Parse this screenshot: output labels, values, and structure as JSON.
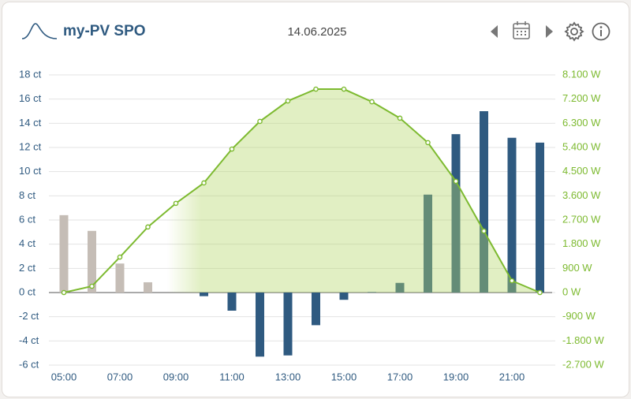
{
  "chart_data": {
    "type": "combo",
    "title": "my-PV SPO",
    "date": "14.06.2025",
    "categories": [
      "05:00",
      null,
      "07:00",
      null,
      "09:00",
      null,
      "11:00",
      null,
      "13:00",
      null,
      "15:00",
      null,
      "17:00",
      null,
      "19:00",
      null,
      "21:00",
      null
    ],
    "series": [
      {
        "type": "bar",
        "colors": [
          "#c5bdb6",
          "#c5bdb6",
          "#c5bdb6",
          "#c5bdb6",
          "#2f5a80",
          "#2f5a80",
          "#2f5a80",
          "#2f5a80",
          "#2f5a80",
          "#2f5a80",
          "#2f5a80",
          "#2f5a80",
          "#2f5a80",
          "#2f5a80",
          "#2f5a80",
          "#2f5a80",
          "#2f5a80",
          "#2f5a80"
        ],
        "values": [
          6.4,
          5.1,
          2.4,
          0.85,
          0,
          -0.3,
          -1.5,
          -5.3,
          -5.2,
          -2.7,
          -0.6,
          0.05,
          0.8,
          8.1,
          13.1,
          15.0,
          12.8,
          12.4
        ]
      },
      {
        "type": "line",
        "axis": "y2",
        "color": "#7dba30",
        "area_color": "#b5d66a",
        "values": [
          0,
          235,
          1320,
          2440,
          3320,
          4080,
          5340,
          6370,
          7130,
          7570,
          7570,
          7100,
          6490,
          5580,
          4140,
          2290,
          440,
          0
        ]
      }
    ],
    "ylim": [
      -6,
      18
    ],
    "yticks": [
      {
        "value": -6,
        "label": "-6 ct"
      },
      {
        "value": -4,
        "label": "-4 ct"
      },
      {
        "value": -2,
        "label": "-2 ct"
      },
      {
        "value": 0,
        "label": "0 ct"
      },
      {
        "value": 2,
        "label": "2 ct"
      },
      {
        "value": 4,
        "label": "4 ct"
      },
      {
        "value": 6,
        "label": "6 ct"
      },
      {
        "value": 8,
        "label": "8 ct"
      },
      {
        "value": 10,
        "label": "10 ct"
      },
      {
        "value": 12,
        "label": "12 ct"
      },
      {
        "value": 14,
        "label": "14 ct"
      },
      {
        "value": 16,
        "label": "16 ct"
      },
      {
        "value": 18,
        "label": "18 ct"
      }
    ],
    "y2lim": [
      -2700,
      8100
    ],
    "y2ticks": [
      {
        "value": -2700,
        "label": "-2.700 W"
      },
      {
        "value": -1800,
        "label": "-1.800 W"
      },
      {
        "value": -900,
        "label": "-900 W"
      },
      {
        "value": 0,
        "label": "0 W"
      },
      {
        "value": 900,
        "label": "900 W"
      },
      {
        "value": 1800,
        "label": "1.800 W"
      },
      {
        "value": 2700,
        "label": "2.700 W"
      },
      {
        "value": 3600,
        "label": "3.600 W"
      },
      {
        "value": 4500,
        "label": "4.500 W"
      },
      {
        "value": 5400,
        "label": "5.400 W"
      },
      {
        "value": 6300,
        "label": "6.300 W"
      },
      {
        "value": 7200,
        "label": "7.200 W"
      },
      {
        "value": 8100,
        "label": "8.100 W"
      }
    ],
    "grid": true
  }
}
